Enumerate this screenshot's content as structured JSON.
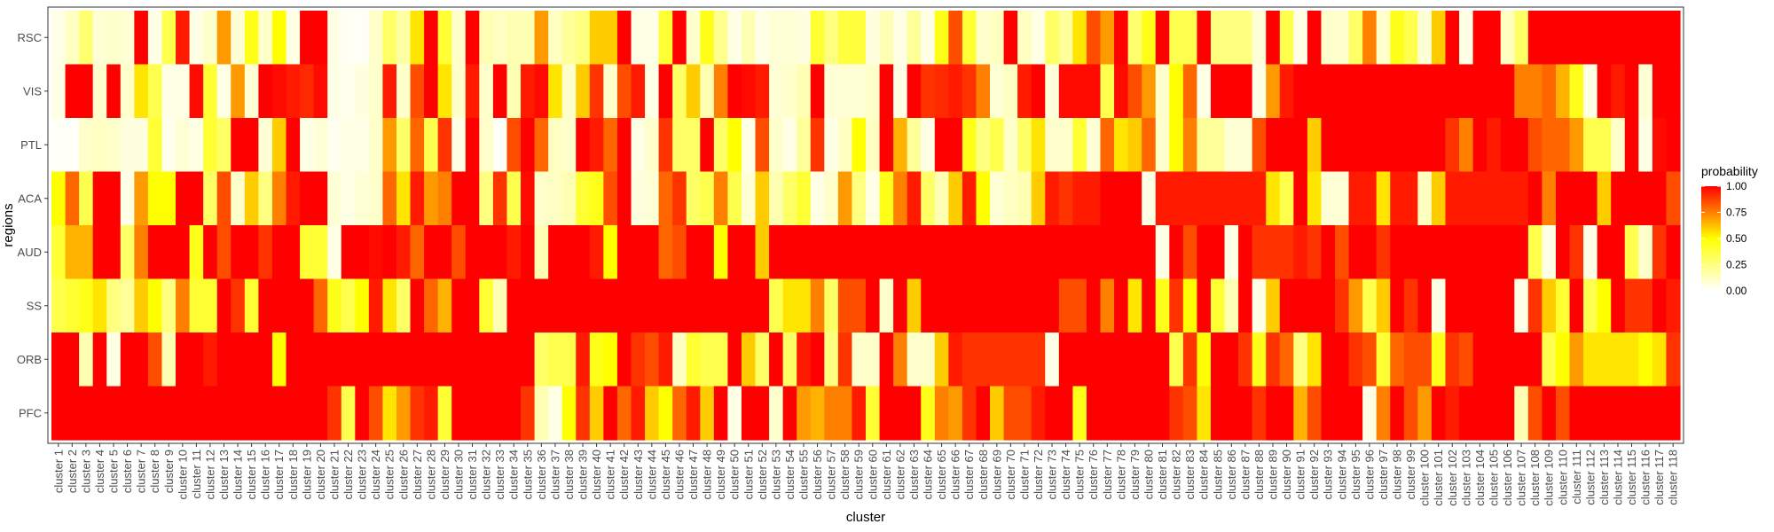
{
  "chart_data": {
    "type": "heatmap",
    "title": "",
    "xlabel": "cluster",
    "ylabel": "regions",
    "legend": {
      "title": "probability",
      "position": "right",
      "ticks": [
        "1.00",
        "0.75",
        "0.50",
        "0.25",
        "0.00"
      ],
      "tick_values": [
        1.0,
        0.75,
        0.5,
        0.25,
        0.0
      ],
      "colors": {
        "low": "#ffffff",
        "mid": "#ffff00",
        "high": "#ff0000"
      }
    },
    "grid": false,
    "value_range": [
      0,
      1
    ],
    "rows": [
      "RSC",
      "VIS",
      "PTL",
      "ACA",
      "AUD",
      "SS",
      "ORB",
      "PFC"
    ],
    "columns": [
      "cluster 1",
      "cluster 2",
      "cluster 3",
      "cluster 4",
      "cluster 5",
      "cluster 6",
      "cluster 7",
      "cluster 8",
      "cluster 9",
      "cluster 10",
      "cluster 11",
      "cluster 12",
      "cluster 13",
      "cluster 14",
      "cluster 15",
      "cluster 16",
      "cluster 17",
      "cluster 18",
      "cluster 19",
      "cluster 20",
      "cluster 21",
      "cluster 22",
      "cluster 23",
      "cluster 24",
      "cluster 25",
      "cluster 26",
      "cluster 27",
      "cluster 28",
      "cluster 29",
      "cluster 30",
      "cluster 31",
      "cluster 32",
      "cluster 33",
      "cluster 34",
      "cluster 35",
      "cluster 36",
      "cluster 37",
      "cluster 38",
      "cluster 39",
      "cluster 40",
      "cluster 41",
      "cluster 42",
      "cluster 43",
      "cluster 44",
      "cluster 45",
      "cluster 46",
      "cluster 47",
      "cluster 48",
      "cluster 49",
      "cluster 50",
      "cluster 51",
      "cluster 52",
      "cluster 53",
      "cluster 54",
      "cluster 55",
      "cluster 56",
      "cluster 57",
      "cluster 58",
      "cluster 59",
      "cluster 60",
      "cluster 61",
      "cluster 62",
      "cluster 63",
      "cluster 64",
      "cluster 65",
      "cluster 66",
      "cluster 67",
      "cluster 68",
      "cluster 69",
      "cluster 70",
      "cluster 71",
      "cluster 72",
      "cluster 73",
      "cluster 74",
      "cluster 75",
      "cluster 76",
      "cluster 77",
      "cluster 78",
      "cluster 79",
      "cluster 80",
      "cluster 81",
      "cluster 82",
      "cluster 83",
      "cluster 84",
      "cluster 85",
      "cluster 86",
      "cluster 87",
      "cluster 88",
      "cluster 89",
      "cluster 90",
      "cluster 91",
      "cluster 92",
      "cluster 93",
      "cluster 94",
      "cluster 95",
      "cluster 96",
      "cluster 97",
      "cluster 98",
      "cluster 99",
      "cluster 100",
      "cluster 101",
      "cluster 102",
      "cluster 103",
      "cluster 104",
      "cluster 105",
      "cluster 106",
      "cluster 107",
      "cluster 108",
      "cluster 109",
      "cluster 110",
      "cluster 111",
      "cluster 112",
      "cluster 113",
      "cluster 114",
      "cluster 115",
      "cluster 116",
      "cluster 117",
      "cluster 118"
    ],
    "values": [
      [
        0.05,
        0.12,
        0.28,
        0.08,
        0.1,
        0.08,
        1,
        0.05,
        0.35,
        0.95,
        0.05,
        0.1,
        0.7,
        0.08,
        0.45,
        0.1,
        0.5,
        0.05,
        1,
        1,
        0.05,
        0.02,
        0.02,
        0.1,
        0.3,
        0.18,
        0.55,
        1,
        0.4,
        0.1,
        1,
        0.15,
        0.12,
        0.15,
        0.15,
        0.7,
        0.12,
        0.2,
        0.25,
        0.6,
        0.6,
        1,
        0.05,
        0.05,
        0.4,
        1,
        0.1,
        0.45,
        0.22,
        0.05,
        0.15,
        0.05,
        0.08,
        0.08,
        0.06,
        0.4,
        0.25,
        0.38,
        0.38,
        0.06,
        0.15,
        0.05,
        0.2,
        0.05,
        0.45,
        0.85,
        0.4,
        0.1,
        0.12,
        1,
        0.12,
        0.05,
        0.3,
        0.2,
        0.55,
        0.85,
        0.7,
        1,
        0.28,
        0.45,
        1,
        0.35,
        0.35,
        1,
        0.25,
        0.25,
        0.25,
        0.08,
        1,
        0.35,
        0.05,
        1,
        0.1,
        0.1,
        0.3,
        0.75,
        0.1,
        0.45,
        0.35,
        0.08,
        0.6,
        1,
        0.05,
        1,
        1,
        0.12,
        0.3,
        1,
        1,
        1,
        1,
        1,
        1,
        1,
        1,
        1,
        1,
        1
      ],
      [
        0.05,
        1,
        1,
        0.1,
        1,
        0.1,
        0.55,
        0.35,
        0.05,
        0.05,
        0.98,
        0.4,
        0.05,
        0.7,
        0.08,
        1,
        0.98,
        0.95,
        0.92,
        0.98,
        0.05,
        0.03,
        0.06,
        0.1,
        0.95,
        0.1,
        0.85,
        1,
        0.55,
        0.1,
        0.95,
        0.1,
        1,
        0.15,
        0.95,
        0.98,
        0.55,
        0.1,
        0.6,
        0.9,
        0.1,
        0.85,
        0.95,
        0.05,
        1,
        0.3,
        0.6,
        0.15,
        0.75,
        1,
        0.98,
        0.95,
        0.08,
        0.1,
        0.15,
        1,
        0.08,
        0.08,
        0.08,
        0.1,
        1,
        0.05,
        1,
        0.9,
        0.92,
        0.95,
        0.9,
        0.75,
        0.08,
        0.12,
        0.95,
        1,
        0.07,
        0.98,
        0.98,
        0.98,
        0.35,
        0.98,
        0.85,
        0.7,
        0.1,
        0.5,
        0.8,
        0.05,
        1,
        1,
        1,
        0.05,
        0.7,
        0.95,
        1,
        1,
        1,
        1,
        1,
        1,
        1,
        1,
        1,
        1,
        1,
        1,
        1,
        1,
        1,
        1,
        0.75,
        0.75,
        0.8,
        0.65,
        0.45,
        0.05,
        1,
        0.95,
        1,
        0.08,
        1,
        1
      ],
      [
        0.02,
        0.02,
        0.1,
        0.12,
        0.1,
        0.06,
        0.06,
        0.4,
        0.04,
        0.08,
        0.05,
        0.4,
        0.3,
        1,
        1,
        0.08,
        0.6,
        1,
        0.05,
        0.08,
        0.03,
        0.05,
        0.05,
        0.1,
        0.7,
        0.3,
        0.8,
        0.35,
        0.9,
        0.05,
        1,
        0.1,
        0.02,
        0.85,
        1,
        0.8,
        0.12,
        0.1,
        1,
        0.95,
        0.8,
        1,
        0.05,
        0.1,
        0.9,
        0.3,
        0.3,
        1,
        0.3,
        0.5,
        0.05,
        0.85,
        0.1,
        0.05,
        0.2,
        0.9,
        0.05,
        0.12,
        0.5,
        0.12,
        1,
        0.65,
        0.2,
        0.05,
        1,
        1,
        0.45,
        0.25,
        0.35,
        0.1,
        0.3,
        0.55,
        0.1,
        0.1,
        0.4,
        0.08,
        0.8,
        0.55,
        0.6,
        0.8,
        0.1,
        0.5,
        0.75,
        0.2,
        0.2,
        0.08,
        0.08,
        0.85,
        1,
        1,
        1,
        0.6,
        1,
        1,
        1,
        1,
        1,
        1,
        1,
        1,
        1,
        0.9,
        0.75,
        1,
        0.95,
        1,
        1,
        0.85,
        0.8,
        0.8,
        0.7,
        0.35,
        0.35,
        0.1,
        1,
        0.05,
        0.98,
        1
      ],
      [
        0.5,
        0.8,
        0.35,
        1,
        1,
        0.05,
        0.7,
        0.5,
        0.5,
        1,
        1,
        0.3,
        0.85,
        0.1,
        0.6,
        0.25,
        0.75,
        0.95,
        1,
        1,
        0.08,
        0.05,
        0.08,
        0.1,
        0.8,
        0.55,
        0.95,
        0.7,
        0.75,
        1,
        1,
        0.25,
        0.9,
        0.35,
        0.98,
        0.1,
        0.12,
        0.15,
        0.4,
        0.45,
        0.85,
        1,
        0.06,
        0.08,
        0.8,
        0.9,
        0.3,
        0.35,
        0.75,
        0.35,
        0.08,
        0.6,
        0.15,
        0.3,
        0.4,
        0.05,
        0.1,
        0.7,
        0.25,
        0.05,
        0.45,
        0.75,
        0.95,
        0.3,
        0.15,
        0.6,
        0.95,
        0.5,
        0.08,
        0.12,
        0.15,
        0.6,
        0.95,
        0.9,
        0.95,
        0.95,
        1,
        1,
        1,
        0.05,
        0.95,
        0.95,
        0.95,
        0.95,
        0.95,
        0.95,
        0.95,
        0.95,
        0.55,
        0.35,
        1,
        0.55,
        0.08,
        0.08,
        0.95,
        0.95,
        0.55,
        0.95,
        0.95,
        0.12,
        0.6,
        0.95,
        0.95,
        0.95,
        0.95,
        0.95,
        0.95,
        1,
        0.75,
        1,
        1,
        1,
        0.6,
        1,
        1,
        1,
        1,
        0.85
      ],
      [
        0.4,
        0.65,
        0.65,
        1,
        1,
        0.3,
        0.75,
        1,
        1,
        1,
        0.45,
        1,
        0.85,
        1,
        1,
        0.9,
        1,
        1,
        0.4,
        0.4,
        0.05,
        1,
        1,
        0.98,
        1,
        0.95,
        0.8,
        1,
        1,
        0.85,
        1,
        1,
        1,
        0.95,
        1,
        0.15,
        1,
        1,
        1,
        0.95,
        0.5,
        1,
        1,
        1,
        0.8,
        0.85,
        1,
        1,
        0.5,
        1,
        1,
        0.6,
        1,
        1,
        1,
        1,
        1,
        1,
        1,
        1,
        1,
        1,
        1,
        1,
        1,
        1,
        1,
        1,
        1,
        1,
        1,
        1,
        1,
        1,
        1,
        1,
        1,
        1,
        1,
        1,
        0.05,
        1,
        0.85,
        1,
        1,
        0.05,
        1,
        0.9,
        0.9,
        0.9,
        0.95,
        0.9,
        1,
        0.85,
        1,
        1,
        0.9,
        1,
        1,
        1,
        1,
        1,
        1,
        1,
        1,
        1,
        1,
        0.35,
        0.05,
        1,
        0.9,
        0.05,
        1,
        1,
        0.35,
        0.1,
        0.9,
        1
      ],
      [
        0.35,
        0.4,
        0.45,
        0.55,
        0.25,
        0.2,
        0.6,
        0.5,
        0.25,
        0.75,
        0.4,
        0.4,
        1,
        0.9,
        0.4,
        1,
        1,
        1,
        1,
        0.8,
        0.45,
        0.35,
        0.5,
        0.95,
        0.55,
        0.3,
        1,
        0.8,
        0.65,
        1,
        1,
        0.4,
        0.15,
        1,
        1,
        1,
        1,
        1,
        1,
        1,
        1,
        1,
        1,
        1,
        1,
        1,
        1,
        1,
        1,
        1,
        1,
        1,
        0.35,
        0.55,
        0.55,
        0.75,
        0.3,
        0.85,
        0.85,
        1,
        0.1,
        1,
        0.6,
        1,
        1,
        1,
        1,
        1,
        1,
        1,
        1,
        1,
        1,
        0.85,
        0.85,
        1,
        0.75,
        1,
        0.55,
        1,
        0.45,
        0.9,
        0.5,
        1,
        0.4,
        0.15,
        1,
        0.05,
        0.6,
        1,
        1,
        1,
        1,
        0.9,
        0.7,
        0.35,
        0.6,
        1,
        0.9,
        1,
        0.05,
        1,
        1,
        1,
        1,
        1,
        0.05,
        0.9,
        0.6,
        0.4,
        1,
        0.35,
        0.5,
        1,
        0.9,
        0.9,
        1,
        0.95
      ],
      [
        1,
        1,
        0.15,
        1,
        0.05,
        1,
        1,
        0.85,
        0.15,
        1,
        1,
        0.95,
        1,
        1,
        1,
        1,
        0.5,
        1,
        1,
        1,
        1,
        1,
        1,
        1,
        1,
        1,
        1,
        1,
        1,
        1,
        1,
        1,
        1,
        1,
        1,
        0.3,
        0.35,
        0.35,
        0.95,
        0.45,
        0.5,
        1,
        0.9,
        0.85,
        0.95,
        0.12,
        0.4,
        0.35,
        0.35,
        1,
        0.6,
        0.3,
        1,
        0.3,
        0.95,
        1,
        0.25,
        0.9,
        0.1,
        0.1,
        1,
        0.75,
        0.1,
        0.1,
        0.6,
        0.95,
        0.9,
        0.9,
        0.9,
        0.9,
        0.9,
        0.9,
        0.05,
        1,
        1,
        1,
        1,
        1,
        1,
        1,
        1,
        0.35,
        0.9,
        0.5,
        1,
        1,
        0.9,
        0.45,
        0.9,
        0.8,
        0.25,
        0.55,
        1,
        1,
        0.9,
        0.85,
        0.4,
        0.8,
        0.85,
        0.85,
        0.45,
        0.9,
        0.85,
        1,
        1,
        1,
        1,
        1,
        0.35,
        0.5,
        0.7,
        0.55,
        0.55,
        0.55,
        0.55,
        0.5,
        0.55,
        0.9
      ],
      [
        1,
        1,
        1,
        1,
        1,
        1,
        1,
        1,
        1,
        1,
        1,
        1,
        1,
        1,
        1,
        1,
        1,
        1,
        1,
        1,
        0.9,
        0.35,
        1,
        0.85,
        0.55,
        0.7,
        0.9,
        0.95,
        0.4,
        1,
        1,
        1,
        1,
        1,
        0.9,
        0.15,
        0.05,
        0.5,
        0.9,
        0.6,
        1,
        0.8,
        0.95,
        0.6,
        0.5,
        0.8,
        0.95,
        0.6,
        1,
        0.05,
        1,
        1,
        0.1,
        1,
        0.7,
        0.65,
        0.75,
        0.75,
        0.95,
        0.4,
        1,
        1,
        1,
        0.45,
        0.75,
        0.7,
        0.9,
        1,
        0.6,
        0.85,
        0.85,
        0.95,
        1,
        1,
        0.45,
        1,
        1,
        1,
        1,
        1,
        1,
        0.9,
        0.85,
        0.55,
        1,
        1,
        1,
        0.9,
        1,
        1,
        0.65,
        0.85,
        1,
        1,
        1,
        0.05,
        0.75,
        1,
        0.85,
        0.7,
        1,
        0.95,
        1,
        1,
        1,
        1,
        0.15,
        0.85,
        1,
        0.85,
        1,
        1,
        1,
        1,
        1,
        1,
        1,
        1
      ]
    ]
  }
}
